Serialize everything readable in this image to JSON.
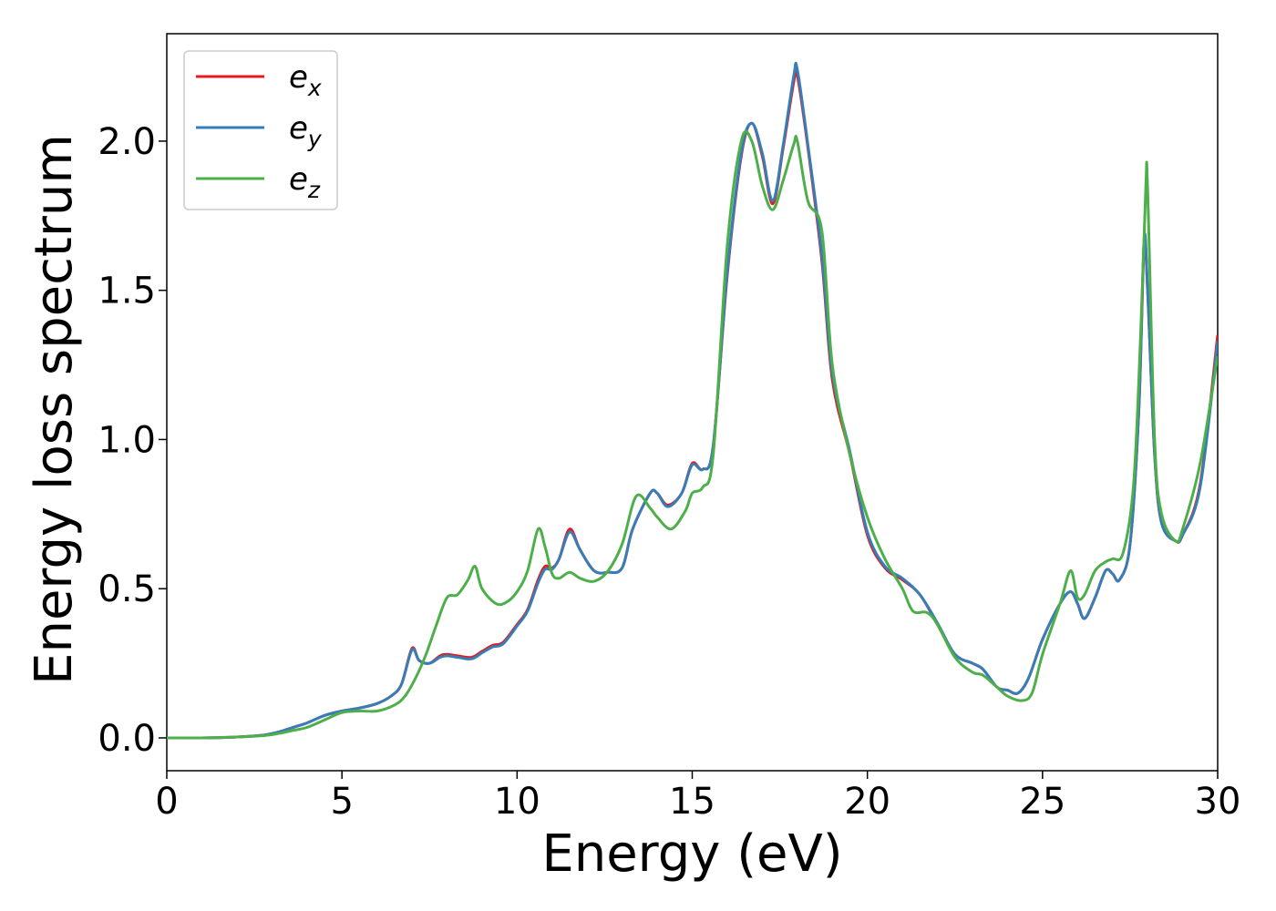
{
  "chart_data": {
    "type": "line",
    "xlabel": "Energy (eV)",
    "ylabel": "Energy loss spectrum",
    "xlim": [
      0,
      30
    ],
    "ylim": [
      -0.11,
      2.36
    ],
    "x_ticks": [
      0,
      5,
      10,
      15,
      20,
      25,
      30
    ],
    "x_tick_labels": [
      "0",
      "5",
      "10",
      "15",
      "20",
      "25",
      "30"
    ],
    "y_ticks": [
      0.0,
      0.5,
      1.0,
      1.5,
      2.0
    ],
    "y_tick_labels": [
      "0.0",
      "0.5",
      "1.0",
      "1.5",
      "2.0"
    ],
    "grid": false,
    "legend_position": "top-left",
    "series": [
      {
        "name": "e_x",
        "legend_base": "e",
        "legend_sub": "x",
        "color": "#e41a1c",
        "x": [
          0,
          1,
          2,
          2.8,
          3.2,
          3.6,
          4,
          4.5,
          5,
          5.5,
          6,
          6.4,
          6.7,
          7.0,
          7.2,
          7.5,
          7.8,
          8.0,
          8.3,
          8.7,
          9.0,
          9.3,
          9.6,
          10.0,
          10.3,
          10.6,
          10.8,
          11.0,
          11.2,
          11.5,
          11.8,
          12.2,
          12.6,
          13.0,
          13.3,
          13.8,
          14.0,
          14.3,
          14.7,
          15.0,
          15.3,
          15.6,
          16.0,
          16.4,
          16.7,
          17.0,
          17.3,
          17.6,
          17.9,
          18.0,
          18.3,
          18.7,
          19.0,
          19.5,
          20.0,
          20.5,
          21.0,
          21.5,
          22.0,
          22.5,
          23.0,
          23.3,
          23.7,
          24.0,
          24.3,
          24.6,
          25.0,
          25.5,
          25.8,
          26.0,
          26.2,
          26.5,
          26.8,
          27.0,
          27.2,
          27.5,
          27.75,
          27.9,
          28.0,
          28.2,
          28.4,
          28.8,
          29.0,
          29.5,
          30.0
        ],
        "y": [
          0,
          0,
          0.003,
          0.01,
          0.02,
          0.035,
          0.05,
          0.075,
          0.09,
          0.1,
          0.115,
          0.14,
          0.18,
          0.3,
          0.26,
          0.25,
          0.275,
          0.28,
          0.275,
          0.27,
          0.29,
          0.31,
          0.32,
          0.38,
          0.43,
          0.53,
          0.575,
          0.57,
          0.6,
          0.7,
          0.63,
          0.56,
          0.555,
          0.57,
          0.7,
          0.82,
          0.82,
          0.78,
          0.82,
          0.92,
          0.9,
          0.98,
          1.55,
          1.95,
          2.06,
          1.95,
          1.79,
          1.98,
          2.2,
          2.22,
          1.98,
          1.6,
          1.2,
          0.95,
          0.68,
          0.57,
          0.53,
          0.48,
          0.38,
          0.28,
          0.25,
          0.23,
          0.17,
          0.16,
          0.15,
          0.2,
          0.33,
          0.45,
          0.49,
          0.45,
          0.4,
          0.47,
          0.56,
          0.55,
          0.53,
          0.65,
          1.1,
          1.65,
          1.5,
          0.95,
          0.72,
          0.66,
          0.68,
          0.85,
          1.35
        ]
      },
      {
        "name": "e_y",
        "legend_base": "e",
        "legend_sub": "y",
        "color": "#377eb8",
        "x": [
          0,
          1,
          2,
          2.8,
          3.2,
          3.6,
          4,
          4.5,
          5,
          5.5,
          6,
          6.4,
          6.7,
          7.0,
          7.2,
          7.5,
          7.8,
          8.0,
          8.3,
          8.7,
          9.0,
          9.3,
          9.6,
          10.0,
          10.3,
          10.6,
          10.8,
          11.0,
          11.2,
          11.5,
          11.8,
          12.2,
          12.6,
          13.0,
          13.3,
          13.8,
          14.0,
          14.3,
          14.7,
          15.0,
          15.3,
          15.6,
          16.0,
          16.4,
          16.7,
          17.0,
          17.3,
          17.6,
          17.9,
          18.0,
          18.3,
          18.7,
          19.0,
          19.5,
          20.0,
          20.5,
          21.0,
          21.5,
          22.0,
          22.5,
          23.0,
          23.3,
          23.7,
          24.0,
          24.3,
          24.6,
          25.0,
          25.5,
          25.8,
          26.0,
          26.2,
          26.5,
          26.8,
          27.0,
          27.2,
          27.5,
          27.75,
          27.9,
          28.0,
          28.2,
          28.4,
          28.8,
          29.0,
          29.5,
          30.0
        ],
        "y": [
          0,
          0,
          0.003,
          0.01,
          0.02,
          0.035,
          0.05,
          0.075,
          0.09,
          0.1,
          0.115,
          0.14,
          0.18,
          0.295,
          0.26,
          0.25,
          0.27,
          0.275,
          0.27,
          0.265,
          0.285,
          0.305,
          0.315,
          0.375,
          0.425,
          0.52,
          0.565,
          0.565,
          0.6,
          0.69,
          0.63,
          0.56,
          0.555,
          0.57,
          0.7,
          0.82,
          0.82,
          0.775,
          0.82,
          0.915,
          0.9,
          0.98,
          1.56,
          1.96,
          2.06,
          1.96,
          1.8,
          1.99,
          2.22,
          2.24,
          1.99,
          1.62,
          1.22,
          0.96,
          0.69,
          0.575,
          0.535,
          0.48,
          0.385,
          0.28,
          0.25,
          0.23,
          0.17,
          0.16,
          0.15,
          0.2,
          0.33,
          0.45,
          0.49,
          0.45,
          0.4,
          0.47,
          0.56,
          0.55,
          0.53,
          0.65,
          1.1,
          1.67,
          1.5,
          0.95,
          0.72,
          0.66,
          0.68,
          0.84,
          1.33
        ]
      },
      {
        "name": "e_z",
        "legend_base": "e",
        "legend_sub": "z",
        "color": "#4daf4a",
        "x": [
          0,
          1,
          2,
          2.8,
          3.2,
          3.6,
          4,
          4.5,
          5,
          5.5,
          6,
          6.5,
          6.8,
          7.1,
          7.4,
          7.7,
          8.0,
          8.3,
          8.6,
          8.8,
          9.0,
          9.4,
          9.7,
          10.0,
          10.3,
          10.6,
          10.8,
          11.0,
          11.2,
          11.5,
          11.8,
          12.2,
          12.6,
          13.0,
          13.4,
          13.8,
          14.0,
          14.4,
          14.8,
          15.0,
          15.3,
          15.6,
          16.0,
          16.4,
          16.7,
          17.0,
          17.3,
          17.6,
          17.9,
          18.0,
          18.3,
          18.7,
          19.0,
          19.5,
          20.0,
          20.5,
          21.0,
          21.3,
          21.7,
          22.0,
          22.5,
          23.0,
          23.3,
          23.7,
          24.0,
          24.4,
          24.7,
          25.0,
          25.5,
          25.8,
          26.0,
          26.2,
          26.5,
          26.8,
          27.0,
          27.3,
          27.6,
          27.8,
          27.95,
          28.0,
          28.2,
          28.4,
          28.8,
          29.0,
          29.5,
          30.0
        ],
        "y": [
          0,
          0,
          0.003,
          0.008,
          0.015,
          0.025,
          0.035,
          0.06,
          0.085,
          0.09,
          0.09,
          0.11,
          0.14,
          0.2,
          0.28,
          0.38,
          0.47,
          0.48,
          0.53,
          0.575,
          0.5,
          0.45,
          0.455,
          0.49,
          0.56,
          0.7,
          0.64,
          0.55,
          0.535,
          0.555,
          0.535,
          0.525,
          0.56,
          0.65,
          0.81,
          0.77,
          0.74,
          0.7,
          0.76,
          0.82,
          0.84,
          0.95,
          1.65,
          2.0,
          2.0,
          1.85,
          1.77,
          1.87,
          1.99,
          2.0,
          1.8,
          1.7,
          1.25,
          0.95,
          0.74,
          0.6,
          0.5,
          0.425,
          0.42,
          0.38,
          0.27,
          0.22,
          0.21,
          0.17,
          0.14,
          0.125,
          0.15,
          0.28,
          0.45,
          0.56,
          0.47,
          0.48,
          0.56,
          0.59,
          0.6,
          0.62,
          0.85,
          1.35,
          1.85,
          1.84,
          1.0,
          0.75,
          0.66,
          0.7,
          0.92,
          1.28
        ]
      }
    ]
  }
}
